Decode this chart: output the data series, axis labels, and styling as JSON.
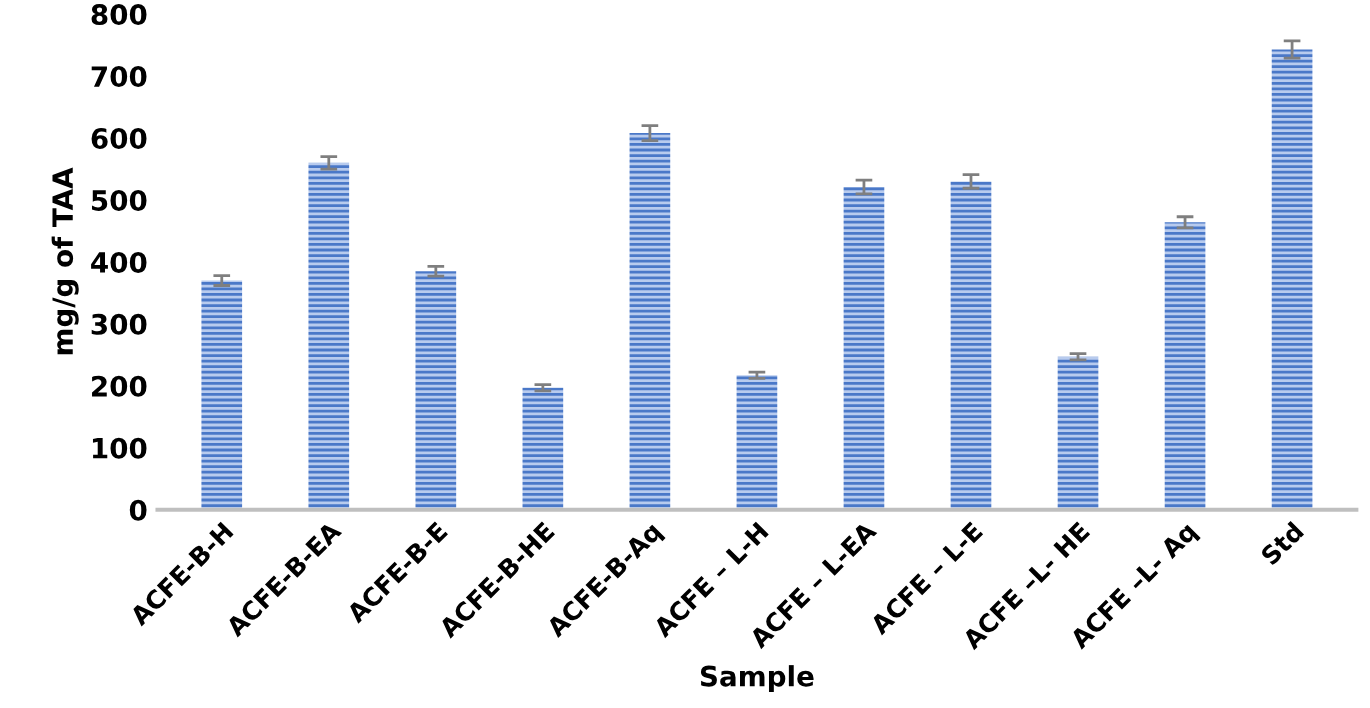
{
  "chart_data": {
    "type": "bar",
    "xlabel": "Sample",
    "ylabel": "mg/g of TAA",
    "categories": [
      "ACFE-B-H",
      "ACFE-B-EA",
      "ACFE-B-E",
      "ACFE-B-HE",
      "ACFE-B-Aq",
      "ACFE – L-H",
      "ACFE – L-EA",
      "ACFE – L-E",
      "ACFE –L- HE",
      "ACFE –L- Aq",
      "Std"
    ],
    "values": [
      370,
      560,
      385,
      197,
      608,
      217,
      521,
      530,
      247,
      464,
      743
    ],
    "errors": [
      8,
      10,
      8,
      5,
      12,
      5,
      11,
      11,
      5,
      9,
      14
    ],
    "color": "#4a78c8",
    "ylim": [
      0,
      800
    ],
    "yticks": [
      0,
      100,
      200,
      300,
      400,
      500,
      600,
      700,
      800
    ],
    "grid": false
  }
}
